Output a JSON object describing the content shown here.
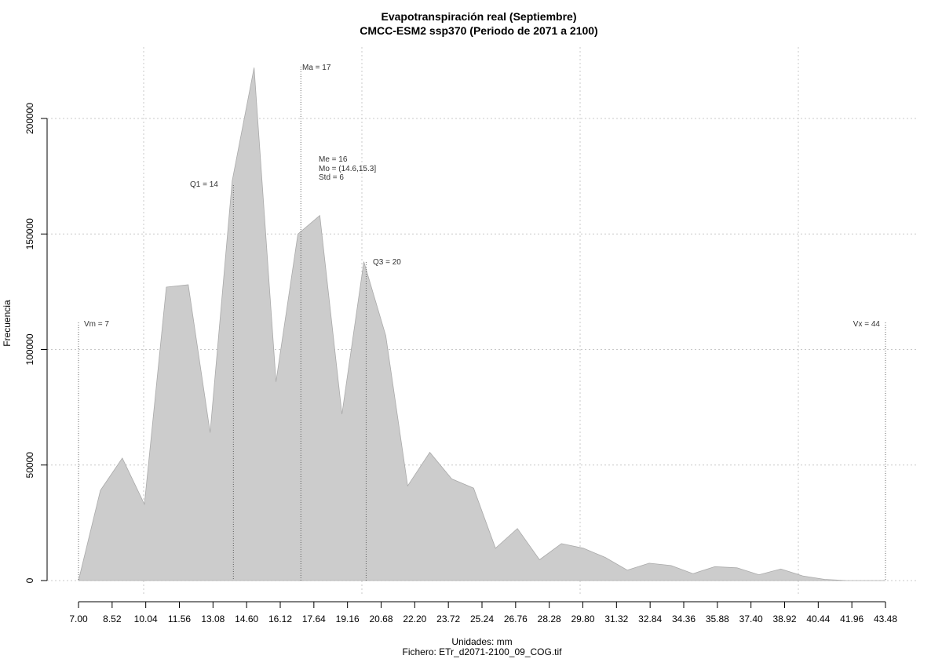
{
  "chart_data": {
    "type": "area",
    "title": "Evapotranspiración real (Septiembre)",
    "subtitle": "CMCC-ESM2 ssp370 (Periodo de 2071 a 2100)",
    "xlabel": "Unidades: mm",
    "ylabel": "Frecuencia",
    "footer": "Fichero: ETr_d2071-2100_09_COG.tif",
    "grid": true,
    "fill_color": "#cccccc",
    "xlim": [
      7.0,
      43.48
    ],
    "ylim": [
      0,
      200000
    ],
    "x_ticks": [
      "7.00",
      "8.52",
      "10.04",
      "11.56",
      "13.08",
      "14.60",
      "16.12",
      "17.64",
      "19.16",
      "20.68",
      "22.20",
      "23.72",
      "25.24",
      "26.76",
      "28.28",
      "29.80",
      "31.32",
      "32.84",
      "34.36",
      "35.88",
      "37.40",
      "38.92",
      "40.44",
      "41.96",
      "43.48"
    ],
    "y_ticks": [
      "0",
      "50000",
      "100000",
      "150000",
      "200000"
    ],
    "x": [
      7.0,
      7.99,
      8.98,
      9.98,
      10.97,
      11.96,
      12.95,
      13.95,
      14.94,
      15.93,
      16.92,
      17.91,
      18.91,
      19.9,
      20.89,
      21.88,
      22.88,
      23.87,
      24.86,
      25.85,
      26.84,
      27.84,
      28.83,
      29.82,
      30.81,
      31.81,
      32.8,
      33.79,
      34.78,
      35.77,
      36.77,
      37.76,
      38.75,
      39.74,
      40.73,
      41.73,
      42.72,
      43.71
    ],
    "y": [
      0,
      39000,
      53000,
      33000,
      127000,
      128000,
      64000,
      173000,
      222000,
      86000,
      150000,
      158000,
      72000,
      138000,
      106000,
      41000,
      55500,
      44000,
      40000,
      14000,
      22500,
      9000,
      16000,
      14000,
      10000,
      4500,
      7500,
      6500,
      3000,
      6000,
      5500,
      2500,
      5000,
      2000,
      500,
      0,
      0,
      0
    ],
    "annotations": {
      "vm": {
        "label": "Vm = 7",
        "x": 7.0
      },
      "q1": {
        "label": "Q1 = 14",
        "x": 14.0
      },
      "ma": {
        "label": "Ma = 17",
        "x": 17.05
      },
      "q3": {
        "label": "Q3 = 20",
        "x": 20.0
      },
      "vx": {
        "label": "Vx = 44",
        "x": 44.0
      },
      "stats": [
        "Me = 16",
        "Mo = (14.6,15.3]",
        "Std = 6"
      ]
    }
  }
}
